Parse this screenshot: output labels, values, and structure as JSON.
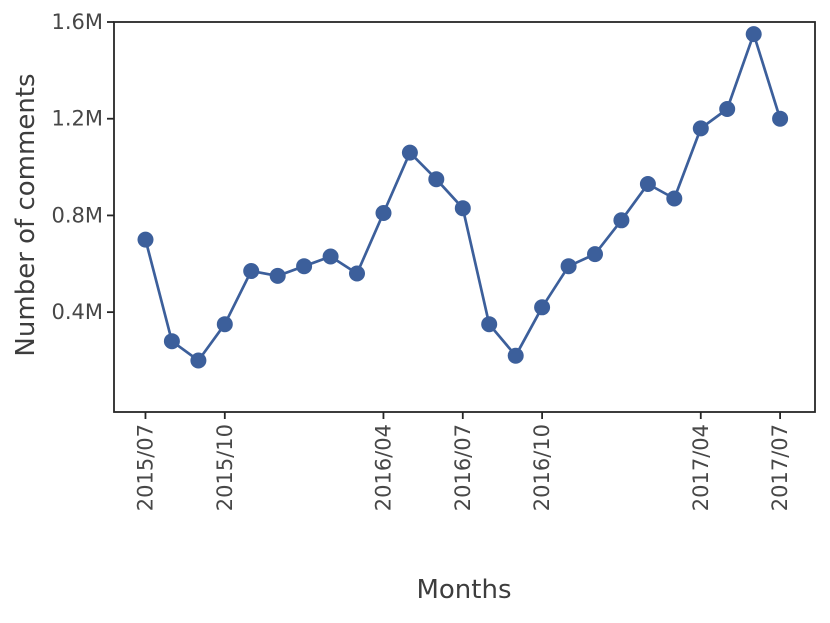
{
  "figure": {
    "background": "#ffffff"
  },
  "chart_data": {
    "type": "line",
    "title": "",
    "xlabel": "Months",
    "ylabel": "Number of comments",
    "unit": "millions of comments",
    "series": [
      {
        "name": "number-of-comments",
        "x": [
          "2015/07",
          "2015/08",
          "2015/09",
          "2015/10",
          "2015/11",
          "2015/12",
          "2016/01",
          "2016/02",
          "2016/03",
          "2016/04",
          "2016/05",
          "2016/06",
          "2016/07",
          "2016/08",
          "2016/09",
          "2016/10",
          "2016/11",
          "2016/12",
          "2017/01",
          "2017/02",
          "2017/03",
          "2017/04",
          "2017/05",
          "2017/06",
          "2017/07"
        ],
        "values_millions": [
          0.7,
          0.28,
          0.2,
          0.35,
          0.57,
          0.55,
          0.59,
          0.63,
          0.56,
          0.81,
          1.06,
          0.95,
          0.83,
          0.35,
          0.22,
          0.42,
          0.59,
          0.64,
          0.78,
          0.93,
          0.87,
          1.16,
          1.24,
          1.55,
          1.2
        ]
      }
    ],
    "x_tick_labels": [
      "2015/07",
      "2015/10",
      "2016/04",
      "2016/07",
      "2016/10",
      "2017/04",
      "2017/07"
    ],
    "y_ticks": [
      {
        "value": 0.4,
        "label": "0.4M"
      },
      {
        "value": 0.8,
        "label": "0.8M"
      },
      {
        "value": 1.2,
        "label": "1.2M"
      },
      {
        "value": 1.6,
        "label": "1.6M"
      }
    ],
    "xlim_month_index": [
      -1.19,
      25.32
    ],
    "ylim": [
      -0.013,
      1.6
    ],
    "grid": false,
    "legend_position": "none",
    "marker": "circle",
    "colors": {
      "line": "#3C5F9B",
      "marker": "#3C5F9B",
      "spine": "#262626",
      "tick_label": "#474747",
      "axis_label": "#3d3d3d"
    }
  }
}
